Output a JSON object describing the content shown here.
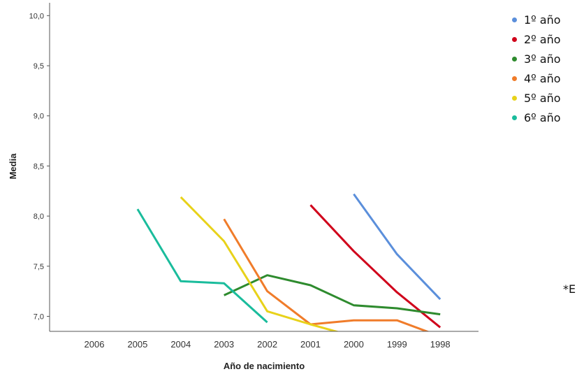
{
  "chart_data": {
    "type": "line",
    "xlabel": "Año de nacimiento",
    "ylabel": "Media",
    "categories": [
      "2006",
      "2005",
      "2004",
      "2003",
      "2002",
      "2001",
      "2000",
      "1999",
      "1998"
    ],
    "yticks": [
      "7,0",
      "7,5",
      "8,0",
      "8,5",
      "9,0",
      "9,5",
      "10,0"
    ],
    "ylim": [
      6.85,
      10.1
    ],
    "grid": false,
    "legend_position": "top-right",
    "series": [
      {
        "name": "1º año",
        "color": "#5b8fdb",
        "points": [
          [
            "2000",
            8.22
          ],
          [
            "1999",
            7.62
          ],
          [
            "1998",
            7.17
          ]
        ]
      },
      {
        "name": "2º año",
        "color": "#d0021b",
        "points": [
          [
            "2001",
            8.11
          ],
          [
            "2000",
            7.65
          ],
          [
            "1999",
            7.24
          ],
          [
            "1998",
            6.89
          ]
        ]
      },
      {
        "name": "3º año",
        "color": "#2e8b2e",
        "points": [
          [
            "2003",
            7.21
          ],
          [
            "2002",
            7.41
          ],
          [
            "2001",
            7.31
          ],
          [
            "2000",
            7.11
          ],
          [
            "1999",
            7.08
          ],
          [
            "1998",
            7.02
          ]
        ]
      },
      {
        "name": "4º año",
        "color": "#f07c2a",
        "points": [
          [
            "2003",
            7.97
          ],
          [
            "2002",
            7.25
          ],
          [
            "2001",
            6.92
          ],
          [
            "2000",
            6.96
          ],
          [
            "1999",
            6.96
          ],
          [
            "1998",
            6.8
          ]
        ]
      },
      {
        "name": "5º año",
        "color": "#e8d21a",
        "points": [
          [
            "2004",
            8.19
          ],
          [
            "2003",
            7.75
          ],
          [
            "2002",
            7.05
          ],
          [
            "2001",
            6.92
          ],
          [
            "2000",
            6.8
          ]
        ]
      },
      {
        "name": "6º año",
        "color": "#1abc9c",
        "points": [
          [
            "2005",
            8.07
          ],
          [
            "2004",
            7.35
          ],
          [
            "2003",
            7.33
          ],
          [
            "2002",
            6.94
          ]
        ]
      }
    ]
  },
  "footnote": "*E"
}
